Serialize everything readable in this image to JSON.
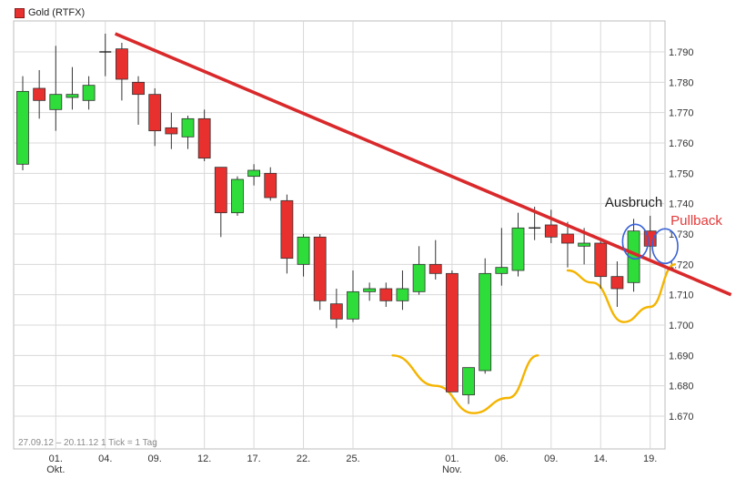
{
  "chart_data": {
    "type": "candlestick",
    "legend": {
      "label": "Gold (RTFX)",
      "color": "#e8302e"
    },
    "footer": "27.09.12 – 20.11.12   1 Tick = 1 Tag",
    "ylim": [
      1662,
      1800
    ],
    "y_ticks": [
      "1.670",
      "1.680",
      "1.690",
      "1.700",
      "1.710",
      "1.720",
      "1.730",
      "1.740",
      "1.750",
      "1.760",
      "1.770",
      "1.780",
      "1.790"
    ],
    "x_ticks": [
      {
        "index": 2,
        "label": "01.",
        "sublabel": "Okt."
      },
      {
        "index": 5,
        "label": "04.",
        "sublabel": ""
      },
      {
        "index": 8,
        "label": "09.",
        "sublabel": ""
      },
      {
        "index": 11,
        "label": "12.",
        "sublabel": ""
      },
      {
        "index": 14,
        "label": "17.",
        "sublabel": ""
      },
      {
        "index": 17,
        "label": "22.",
        "sublabel": ""
      },
      {
        "index": 20,
        "label": "25.",
        "sublabel": ""
      },
      {
        "index": 26,
        "label": "01.",
        "sublabel": "Nov."
      },
      {
        "index": 29,
        "label": "06.",
        "sublabel": ""
      },
      {
        "index": 32,
        "label": "09.",
        "sublabel": ""
      },
      {
        "index": 35,
        "label": "14.",
        "sublabel": ""
      },
      {
        "index": 38,
        "label": "19.",
        "sublabel": ""
      }
    ],
    "candles": [
      {
        "o": 1753,
        "h": 1782,
        "l": 1751,
        "c": 1777
      },
      {
        "o": 1778,
        "h": 1784,
        "l": 1768,
        "c": 1774
      },
      {
        "o": 1771,
        "h": 1792,
        "l": 1764,
        "c": 1776
      },
      {
        "o": 1775,
        "h": 1785,
        "l": 1771,
        "c": 1776
      },
      {
        "o": 1774,
        "h": 1782,
        "l": 1771,
        "c": 1779
      },
      {
        "o": 1790,
        "h": 1796,
        "l": 1782,
        "c": 1790
      },
      {
        "o": 1791,
        "h": 1793,
        "l": 1774,
        "c": 1781
      },
      {
        "o": 1780,
        "h": 1782,
        "l": 1766,
        "c": 1776
      },
      {
        "o": 1776,
        "h": 1778,
        "l": 1759,
        "c": 1764
      },
      {
        "o": 1765,
        "h": 1770,
        "l": 1758,
        "c": 1763
      },
      {
        "o": 1762,
        "h": 1769,
        "l": 1758,
        "c": 1768
      },
      {
        "o": 1768,
        "h": 1771,
        "l": 1754,
        "c": 1755
      },
      {
        "o": 1752,
        "h": 1752,
        "l": 1729,
        "c": 1737
      },
      {
        "o": 1737,
        "h": 1749,
        "l": 1736,
        "c": 1748
      },
      {
        "o": 1749,
        "h": 1753,
        "l": 1746,
        "c": 1751
      },
      {
        "o": 1750,
        "h": 1752,
        "l": 1741,
        "c": 1742
      },
      {
        "o": 1741,
        "h": 1743,
        "l": 1717,
        "c": 1722
      },
      {
        "o": 1720,
        "h": 1730,
        "l": 1716,
        "c": 1729
      },
      {
        "o": 1729,
        "h": 1730,
        "l": 1705,
        "c": 1708
      },
      {
        "o": 1707,
        "h": 1712,
        "l": 1699,
        "c": 1702
      },
      {
        "o": 1702,
        "h": 1718,
        "l": 1701,
        "c": 1711
      },
      {
        "o": 1711,
        "h": 1714,
        "l": 1708,
        "c": 1712
      },
      {
        "o": 1712,
        "h": 1714,
        "l": 1706,
        "c": 1708
      },
      {
        "o": 1708,
        "h": 1718,
        "l": 1705,
        "c": 1712
      },
      {
        "o": 1711,
        "h": 1726,
        "l": 1710,
        "c": 1720
      },
      {
        "o": 1720,
        "h": 1728,
        "l": 1715,
        "c": 1717
      },
      {
        "o": 1717,
        "h": 1718,
        "l": 1678,
        "c": 1678
      },
      {
        "o": 1677,
        "h": 1686,
        "l": 1674,
        "c": 1686
      },
      {
        "o": 1685,
        "h": 1722,
        "l": 1684,
        "c": 1717
      },
      {
        "o": 1717,
        "h": 1732,
        "l": 1713,
        "c": 1719
      },
      {
        "o": 1718,
        "h": 1737,
        "l": 1716,
        "c": 1732
      },
      {
        "o": 1732,
        "h": 1739,
        "l": 1728,
        "c": 1732
      },
      {
        "o": 1733,
        "h": 1738,
        "l": 1727,
        "c": 1729
      },
      {
        "o": 1730,
        "h": 1734,
        "l": 1719,
        "c": 1727
      },
      {
        "o": 1726,
        "h": 1732,
        "l": 1720,
        "c": 1727
      },
      {
        "o": 1727,
        "h": 1728,
        "l": 1712,
        "c": 1716
      },
      {
        "o": 1716,
        "h": 1721,
        "l": 1706,
        "c": 1712
      },
      {
        "o": 1714,
        "h": 1735,
        "l": 1711,
        "c": 1731
      },
      {
        "o": 1731,
        "h": 1736,
        "l": 1722,
        "c": 1726
      }
    ],
    "trendline": {
      "from": {
        "index": 5.6,
        "value": 1796
      },
      "to": {
        "index": 42.9,
        "value": 1710
      },
      "color": "#d9292b"
    },
    "support_curves": [
      {
        "points": [
          [
            22.4,
            1690
          ],
          [
            25.0,
            1680
          ],
          [
            27.3,
            1671
          ],
          [
            29.4,
            1676
          ],
          [
            31.2,
            1690
          ]
        ],
        "color": "#f4b400"
      },
      {
        "points": [
          [
            33.0,
            1718
          ],
          [
            34.5,
            1714
          ],
          [
            36.4,
            1701
          ],
          [
            38.0,
            1706
          ],
          [
            39.5,
            1720
          ]
        ],
        "color": "#f4b400"
      }
    ],
    "highlight_circles": [
      {
        "index": 37.1,
        "value": 1727.5,
        "color": "#3a62d8"
      },
      {
        "index": 38.9,
        "value": 1726,
        "color": "#3a62d8"
      }
    ],
    "annotations": [
      {
        "text": "Ausbruch",
        "index": 37.0,
        "value": 1739,
        "color": "#222222"
      },
      {
        "text": "Pullback",
        "index": 40.8,
        "value": 1733,
        "color": "#e23a3a"
      }
    ],
    "colors": {
      "up": "#2edc3a",
      "down": "#e8302e",
      "grid": "#d8d8d8",
      "frame": "#bdbdbd"
    },
    "grid": true
  }
}
